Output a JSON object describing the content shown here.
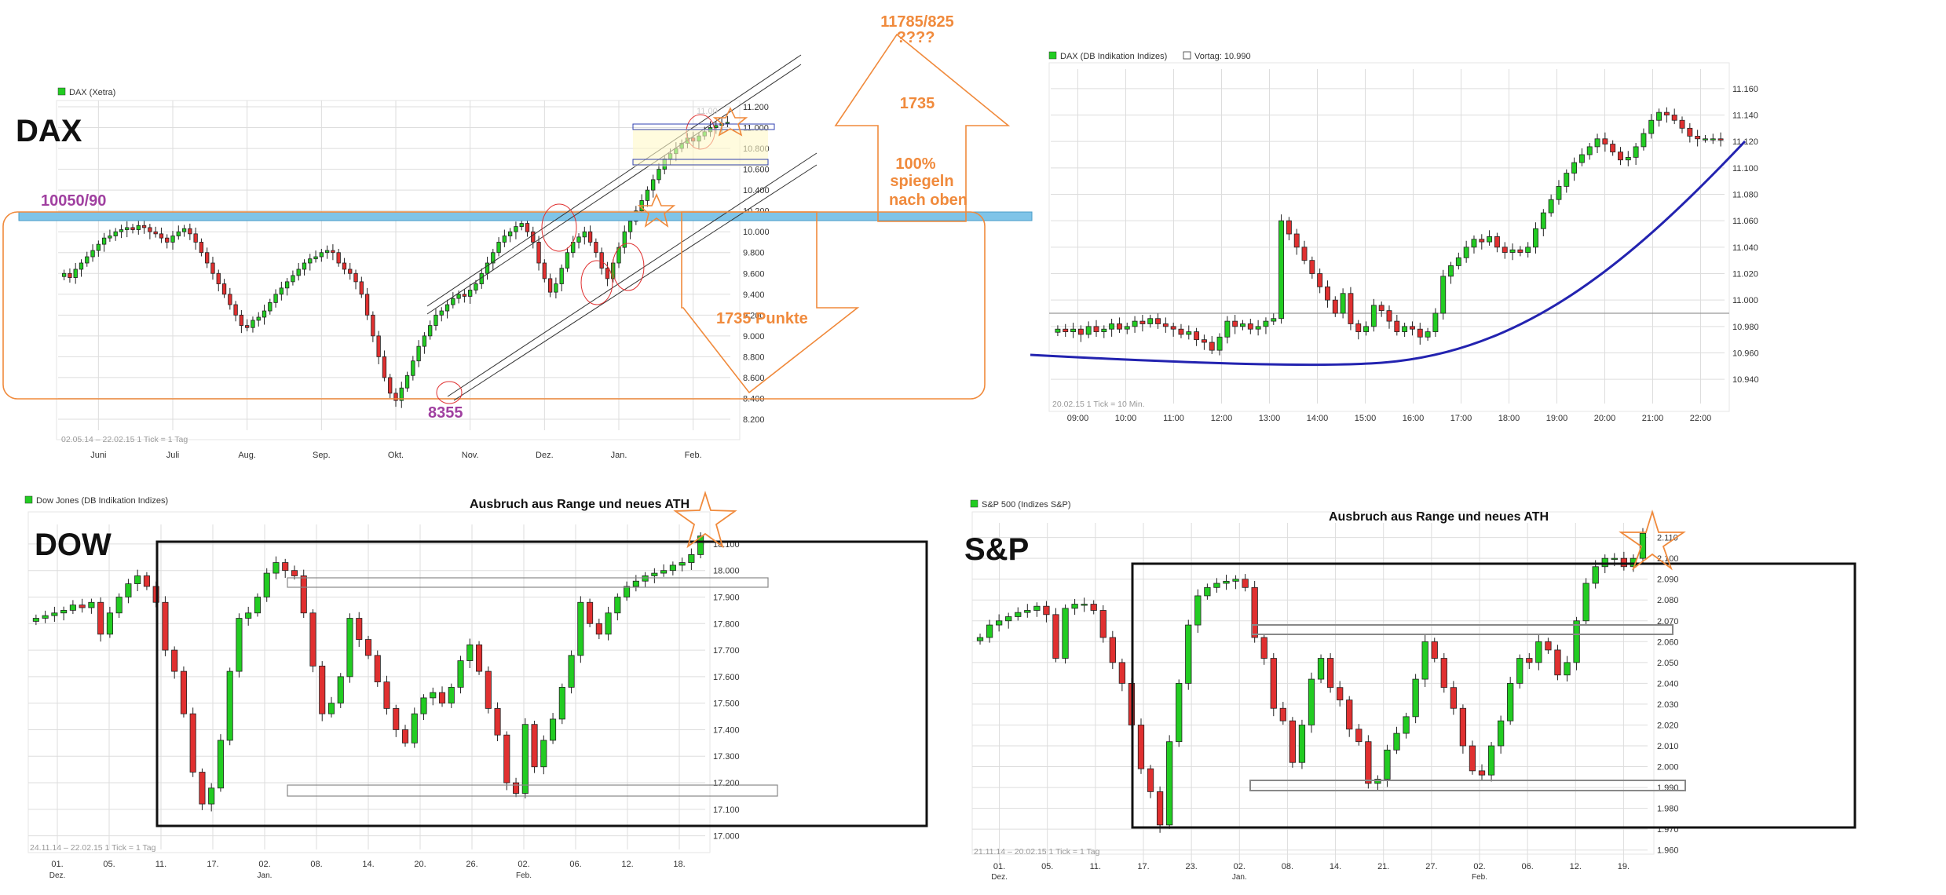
{
  "colors": {
    "up": "#22cc22",
    "down": "#e03030",
    "grid": "#dddddd",
    "axis": "#555555",
    "orange": "#f08a3c",
    "purple": "#a040a0",
    "band": "#7fc4e8",
    "trend": "#2323b0"
  },
  "chart_data": [
    {
      "id": "dax-daily",
      "type": "candlestick",
      "title": "DAX",
      "legend": "DAX (Xetra)",
      "period_note": "02.05.14 – 22.02.15   1 Tick = 1 Tag",
      "x_ticks": [
        "Juni",
        "Juli",
        "Aug.",
        "Sep.",
        "Okt.",
        "Nov.",
        "Dez.",
        "Jan.",
        "Feb."
      ],
      "y_ticks": [
        "8.200",
        "8.400",
        "8.600",
        "8.800",
        "9.000",
        "9.200",
        "9.400",
        "9.600",
        "9.800",
        "10.000",
        "10.200",
        "10.400",
        "10.600",
        "10.800",
        "11.000",
        "11.200"
      ],
      "ylim": [
        8200,
        11200
      ],
      "closes": [
        9600,
        9560,
        9640,
        9700,
        9760,
        9820,
        9880,
        9940,
        9960,
        10000,
        10020,
        10040,
        10020,
        10060,
        10040,
        10000,
        9980,
        9940,
        9900,
        9960,
        10000,
        10030,
        9980,
        9900,
        9800,
        9700,
        9600,
        9500,
        9400,
        9300,
        9200,
        9100,
        9080,
        9150,
        9180,
        9240,
        9320,
        9400,
        9460,
        9520,
        9580,
        9640,
        9700,
        9740,
        9760,
        9800,
        9820,
        9800,
        9700,
        9640,
        9600,
        9520,
        9400,
        9200,
        9000,
        8800,
        8600,
        8450,
        8380,
        8500,
        8620,
        8760,
        8900,
        9000,
        9100,
        9200,
        9240,
        9300,
        9360,
        9400,
        9380,
        9440,
        9500,
        9600,
        9700,
        9800,
        9900,
        9960,
        10000,
        10050,
        10080,
        10000,
        9900,
        9700,
        9550,
        9420,
        9500,
        9650,
        9800,
        9900,
        9950,
        10000,
        9900,
        9800,
        9650,
        9550,
        9700,
        9850,
        10000,
        10100,
        10200,
        10300,
        10400,
        10500,
        10600,
        10700,
        10750,
        10800,
        10850,
        10900,
        10870,
        10920,
        10960,
        11000,
        11020,
        11040,
        11050
      ]
    },
    {
      "id": "dax-intraday",
      "type": "candlestick",
      "legend": "DAX (DB Indikation Indizes)",
      "legend2": "Vortag: 10.990",
      "period_note": "20.02.15   1 Tick = 10 Min.",
      "x_ticks": [
        "09:00",
        "10:00",
        "11:00",
        "12:00",
        "13:00",
        "14:00",
        "15:00",
        "16:00",
        "17:00",
        "18:00",
        "19:00",
        "20:00",
        "21:00",
        "22:00"
      ],
      "y_ticks": [
        "10.940",
        "10.960",
        "10.980",
        "11.000",
        "11.020",
        "11.040",
        "11.060",
        "11.080",
        "11.100",
        "11.120",
        "11.140",
        "11.160"
      ],
      "ylim": [
        10930,
        11170
      ],
      "prev_close": 10990,
      "closes": [
        10978,
        10976,
        10978,
        10974,
        10980,
        10976,
        10978,
        10982,
        10978,
        10980,
        10984,
        10982,
        10986,
        10982,
        10980,
        10978,
        10974,
        10976,
        10970,
        10968,
        10962,
        10972,
        10984,
        10980,
        10982,
        10978,
        10980,
        10984,
        10986,
        11060,
        11050,
        11040,
        11030,
        11020,
        11010,
        11000,
        10990,
        11005,
        10982,
        10976,
        10980,
        10996,
        10992,
        10984,
        10976,
        10980,
        10978,
        10972,
        10976,
        10990,
        11018,
        11026,
        11032,
        11040,
        11046,
        11044,
        11048,
        11040,
        11036,
        11038,
        11036,
        11040,
        11054,
        11066,
        11076,
        11086,
        11096,
        11104,
        11110,
        11116,
        11122,
        11118,
        11112,
        11106,
        11108,
        11116,
        11126,
        11136,
        11142,
        11140,
        11136,
        11130,
        11124,
        11122,
        11122,
        11122,
        11121
      ]
    },
    {
      "id": "dow-daily",
      "type": "candlestick",
      "title": "DOW",
      "legend": "Dow Jones (DB Indikation Indizes)",
      "period_note": "24.11.14 – 22.02.15   1 Tick = 1 Tag",
      "x_ticks": [
        "01.",
        "05.",
        "11.",
        "17.",
        "02.",
        "08.",
        "14.",
        "20.",
        "26.",
        "02.",
        "06.",
        "12.",
        "18."
      ],
      "x_subticks": [
        "Dez.",
        "Jan.",
        "Feb."
      ],
      "y_ticks": [
        "17.000",
        "17.100",
        "17.200",
        "17.300",
        "17.400",
        "17.500",
        "17.600",
        "17.700",
        "17.800",
        "17.900",
        "18.000",
        "18.100"
      ],
      "ylim": [
        16990,
        18150
      ],
      "closes": [
        17820,
        17830,
        17840,
        17850,
        17870,
        17860,
        17880,
        17760,
        17840,
        17900,
        17950,
        17980,
        17940,
        17880,
        17700,
        17620,
        17460,
        17240,
        17120,
        17180,
        17360,
        17620,
        17820,
        17840,
        17900,
        17990,
        18030,
        18000,
        17980,
        17840,
        17640,
        17460,
        17500,
        17600,
        17820,
        17740,
        17680,
        17580,
        17480,
        17400,
        17350,
        17460,
        17520,
        17540,
        17500,
        17560,
        17660,
        17720,
        17620,
        17480,
        17380,
        17200,
        17160,
        17420,
        17260,
        17360,
        17440,
        17560,
        17680,
        17880,
        17800,
        17760,
        17840,
        17900,
        17940,
        17960,
        17980,
        17990,
        18000,
        18020,
        18030,
        18060,
        18130
      ]
    },
    {
      "id": "sp500-daily",
      "type": "candlestick",
      "title": "S&P",
      "legend": "S&P 500 (Indizes S&P)",
      "period_note": "21.11.14 – 20.02.15   1 Tick = 1 Tag",
      "x_ticks": [
        "01.",
        "05.",
        "11.",
        "17.",
        "23.",
        "02.",
        "08.",
        "14.",
        "21.",
        "27.",
        "02.",
        "06.",
        "12.",
        "19."
      ],
      "x_subticks": [
        "Dez.",
        "Jan.",
        "Feb."
      ],
      "y_ticks": [
        "1.960",
        "1.970",
        "1.980",
        "1.990",
        "2.000",
        "2.010",
        "2.020",
        "2.030",
        "2.040",
        "2.050",
        "2.060",
        "2.070",
        "2.080",
        "2.090",
        "2.100",
        "2.110"
      ],
      "ylim": [
        1958,
        2114
      ],
      "closes": [
        2062,
        2068,
        2070,
        2072,
        2074,
        2075,
        2077,
        2073,
        2052,
        2076,
        2078,
        2078,
        2075,
        2062,
        2050,
        2040,
        2020,
        1999,
        1988,
        1972,
        2012,
        2040,
        2068,
        2082,
        2086,
        2088,
        2089,
        2090,
        2086,
        2062,
        2052,
        2028,
        2022,
        2002,
        2020,
        2042,
        2052,
        2038,
        2032,
        2018,
        2012,
        1992,
        1994,
        2008,
        2016,
        2024,
        2042,
        2060,
        2052,
        2038,
        2028,
        2010,
        1998,
        1996,
        2010,
        2022,
        2040,
        2052,
        2050,
        2060,
        2056,
        2044,
        2050,
        2070,
        2088,
        2096,
        2100,
        2100,
        2096,
        2100,
        2112
      ]
    }
  ],
  "annotations": {
    "dax_title": "DAX",
    "dow_title": "DOW",
    "sp_title": "S&P",
    "support_label": "10050/90",
    "low_label": "8355",
    "target_label1": "11785/825",
    "target_label2": "????",
    "arrow_up_label": "1735",
    "mirror_pct": "100%",
    "mirror_line1": "spiegeln",
    "mirror_line2": "nach oben",
    "down_arrow_label": "1735 Punkte",
    "breakout_dow": "Ausbruch aus Range und neues ATH",
    "breakout_sp": "Ausbruch aus Range und neues ATH",
    "dax_faded_price": "11.00"
  }
}
